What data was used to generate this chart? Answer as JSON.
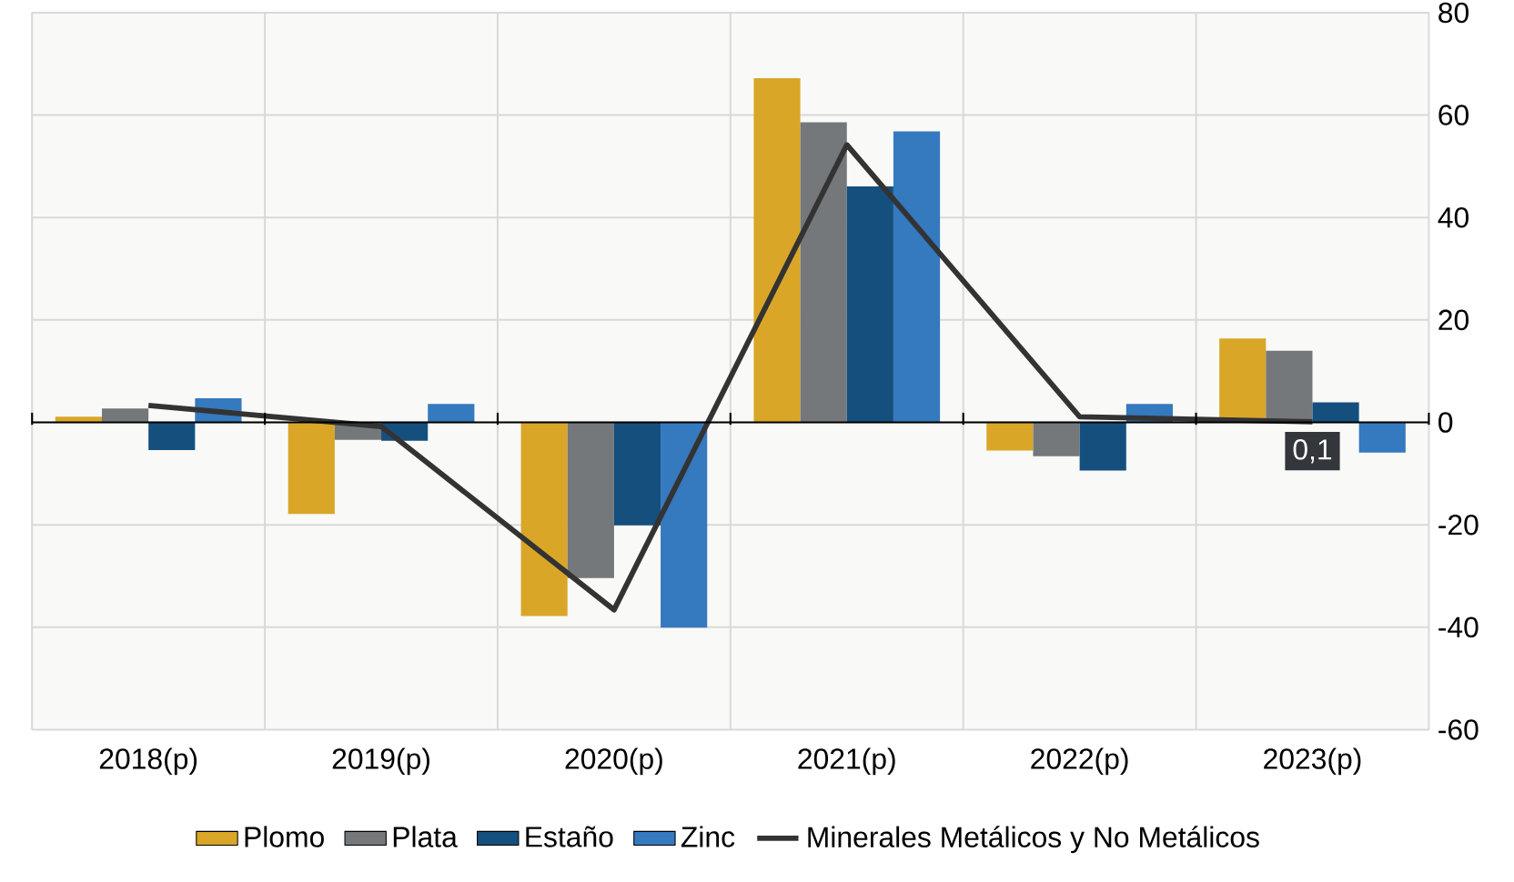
{
  "chart_data": {
    "type": "bar",
    "categories": [
      "2018(p)",
      "2019(p)",
      "2020(p)",
      "2021(p)",
      "2022(p)",
      "2023(p)"
    ],
    "series": [
      {
        "name": "Plomo",
        "color": "#d9a628",
        "values": [
          1.1,
          -17.9,
          -37.8,
          67.2,
          -5.5,
          16.4
        ]
      },
      {
        "name": "Plata",
        "color": "#75787b",
        "values": [
          2.7,
          -3.4,
          -30.4,
          58.6,
          -6.6,
          14
        ]
      },
      {
        "name": "Estaño",
        "color": "#154f7e",
        "values": [
          -5.4,
          -3.6,
          -20.1,
          46.1,
          -9.4,
          3.9
        ]
      },
      {
        "name": "Zinc",
        "color": "#3579bf",
        "values": [
          4.7,
          3.6,
          -40.1,
          56.8,
          3.6,
          -5.9
        ]
      },
      {
        "name": "Minerales Metálicos y No Metálicos",
        "type": "line",
        "color": "#333333",
        "values": [
          3.3,
          -0.8,
          -36.6,
          54.2,
          1.1,
          0.1
        ],
        "value_labels": [
          null,
          null,
          null,
          null,
          null,
          "0,1"
        ]
      }
    ],
    "ylim": [
      -60,
      80
    ],
    "yticks": [
      -60,
      -40,
      -20,
      0,
      20,
      40,
      60,
      80
    ],
    "grid": true,
    "legend": "bottom",
    "marker": "none",
    "line_style": "solid"
  }
}
